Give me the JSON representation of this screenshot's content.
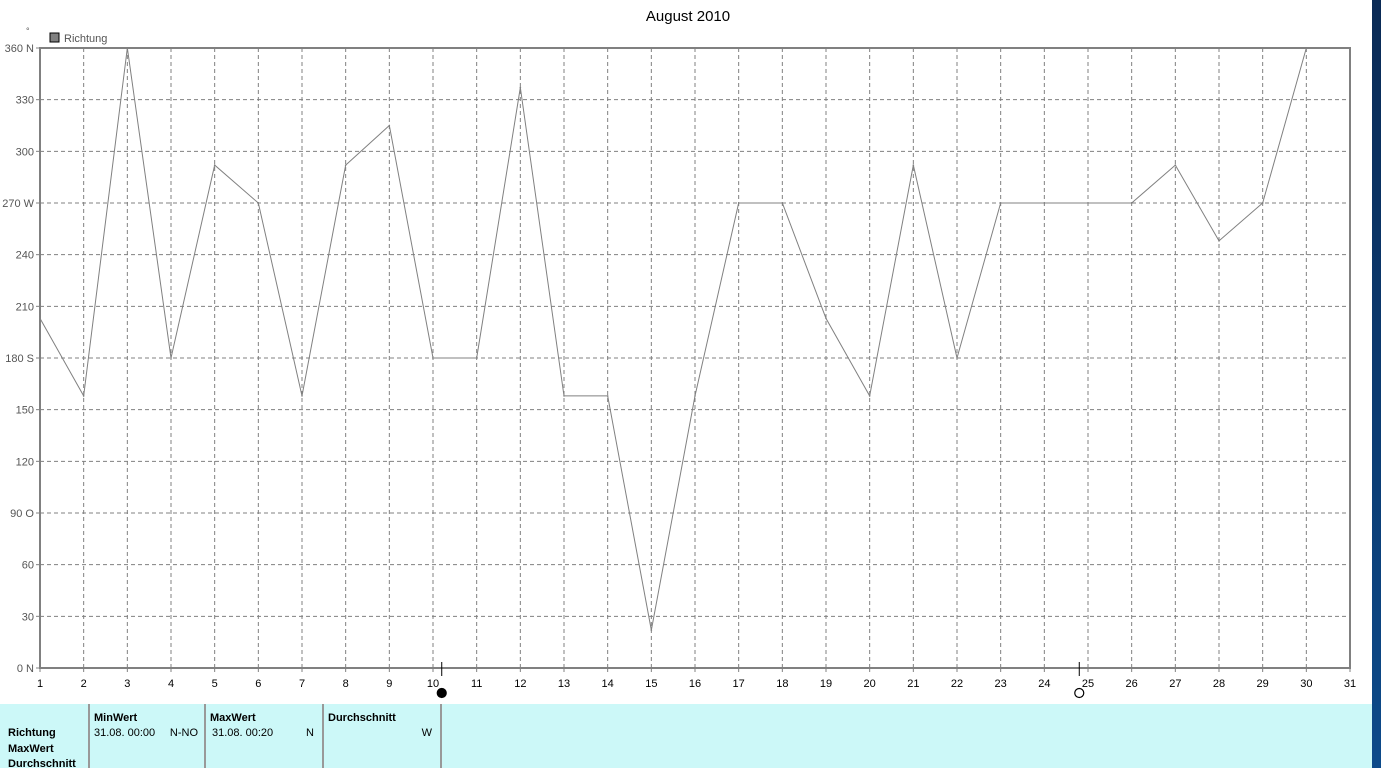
{
  "chart_data": {
    "type": "line",
    "title": "August 2010",
    "ylabel_unit": "°",
    "legend": [
      {
        "name": "Richtung",
        "color": "#808080"
      }
    ],
    "legend_placement": "top-left",
    "grid": true,
    "x": [
      1,
      2,
      3,
      4,
      5,
      6,
      7,
      8,
      9,
      10,
      11,
      12,
      13,
      14,
      15,
      16,
      17,
      18,
      19,
      20,
      21,
      22,
      23,
      24,
      25,
      26,
      27,
      28,
      29,
      30
    ],
    "series": [
      {
        "name": "Richtung",
        "values": [
          203,
          158,
          360,
          180,
          292,
          270,
          158,
          292,
          315,
          180,
          180,
          337,
          158,
          158,
          22,
          158,
          270,
          270,
          203,
          158,
          292,
          180,
          270,
          270,
          270,
          270,
          292,
          248,
          270,
          360
        ]
      }
    ],
    "xlim": [
      1,
      31
    ],
    "ylim": [
      0,
      360
    ],
    "xticks": [
      "1",
      "2",
      "3",
      "4",
      "5",
      "6",
      "7",
      "8",
      "9",
      "10",
      "11",
      "12",
      "13",
      "14",
      "15",
      "16",
      "17",
      "18",
      "19",
      "20",
      "21",
      "22",
      "23",
      "24",
      "25",
      "26",
      "27",
      "28",
      "29",
      "30",
      "31"
    ],
    "yticks": [
      {
        "v": 0,
        "label": "0   N"
      },
      {
        "v": 30,
        "label": "30"
      },
      {
        "v": 60,
        "label": "60"
      },
      {
        "v": 90,
        "label": "90   O"
      },
      {
        "v": 120,
        "label": "120"
      },
      {
        "v": 150,
        "label": "150"
      },
      {
        "v": 180,
        "label": "180 S"
      },
      {
        "v": 210,
        "label": "210"
      },
      {
        "v": 240,
        "label": "240"
      },
      {
        "v": 270,
        "label": "270 W"
      },
      {
        "v": 300,
        "label": "300"
      },
      {
        "v": 330,
        "label": "330"
      },
      {
        "v": 360,
        "label": "360 N"
      }
    ],
    "moon_phases": [
      {
        "day": 10.2,
        "phase": "new-moon"
      },
      {
        "day": 24.8,
        "phase": "full-moon"
      }
    ]
  },
  "panel": {
    "rows": [
      "Richtung",
      "MaxWert",
      "Durchschnitt"
    ],
    "min": {
      "header": "MinWert",
      "time": "31.08.  00:00",
      "value": "N-NO"
    },
    "max": {
      "header": "MaxWert",
      "time": "31.08.  00:20",
      "value": "N"
    },
    "avg": {
      "header": "Durchschnitt",
      "value": "W"
    }
  }
}
